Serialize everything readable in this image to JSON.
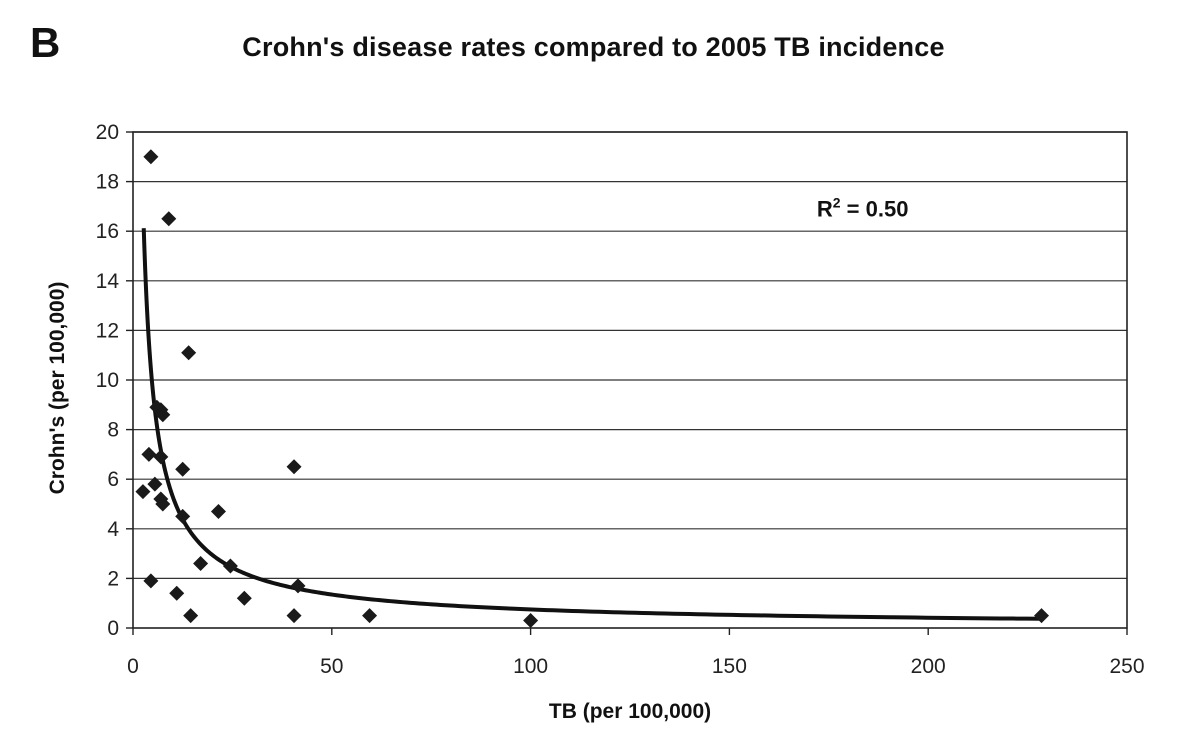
{
  "panel_label": "B",
  "chart_data": {
    "type": "scatter",
    "title": "Crohn's disease rates compared to 2005 TB incidence",
    "xlabel": "TB (per 100,000)",
    "ylabel": "Crohn's (per 100,000)",
    "xlim": [
      0,
      250
    ],
    "ylim": [
      0,
      20
    ],
    "xticks": [
      0,
      50,
      100,
      150,
      200,
      250
    ],
    "yticks": [
      0,
      2,
      4,
      6,
      8,
      10,
      12,
      14,
      16,
      18,
      20
    ],
    "grid": "horizontal",
    "marker": "diamond",
    "marker_color": "#1a1a1a",
    "points": [
      [
        4.5,
        19.0
      ],
      [
        9.0,
        16.5
      ],
      [
        14.0,
        11.1
      ],
      [
        6.0,
        8.9
      ],
      [
        7.0,
        8.8
      ],
      [
        7.5,
        8.6
      ],
      [
        4.0,
        7.0
      ],
      [
        7.0,
        6.9
      ],
      [
        12.5,
        6.4
      ],
      [
        40.5,
        6.5
      ],
      [
        5.5,
        5.8
      ],
      [
        2.5,
        5.5
      ],
      [
        7.0,
        5.2
      ],
      [
        7.5,
        5.0
      ],
      [
        21.5,
        4.7
      ],
      [
        12.5,
        4.5
      ],
      [
        17.0,
        2.6
      ],
      [
        24.5,
        2.5
      ],
      [
        4.5,
        1.9
      ],
      [
        41.5,
        1.7
      ],
      [
        11.0,
        1.4
      ],
      [
        28.0,
        1.2
      ],
      [
        14.5,
        0.5
      ],
      [
        40.5,
        0.5
      ],
      [
        59.5,
        0.5
      ],
      [
        100.0,
        0.3
      ],
      [
        228.5,
        0.5
      ]
    ],
    "trendline": {
      "type": "power",
      "coefficient": 37.5,
      "exponent": -0.85,
      "x_range": [
        2.7,
        228
      ],
      "color": "#111111"
    },
    "annotation": {
      "base": "R",
      "superscript": "2",
      "text": " = 0.50",
      "x": 172,
      "y": 16.6
    }
  }
}
